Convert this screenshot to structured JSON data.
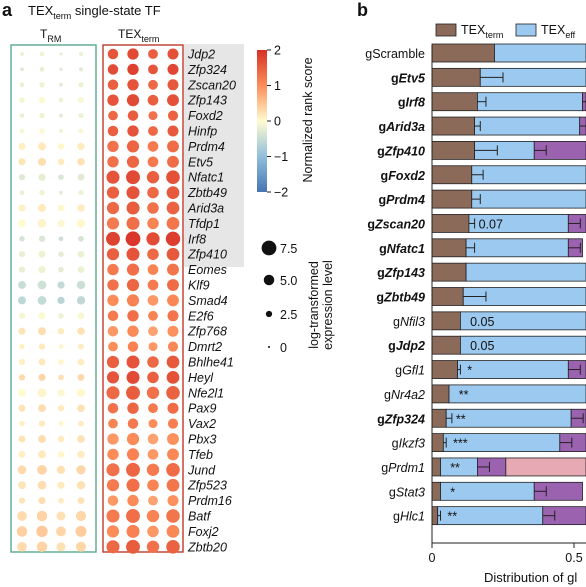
{
  "panel_a": {
    "letter": "a",
    "title_main": "TEX",
    "title_sub": "term",
    "title_rest": " single-state TF",
    "group_trm_main": "T",
    "group_trm_sub": "RM",
    "group_tex_main": "TEX",
    "group_tex_sub": "term",
    "colorbar_title": "Normalized rank score",
    "colorbar_ticks": [
      "2",
      "1",
      "0",
      "−1",
      "−2"
    ],
    "size_legend_title": "log-transformed expression level",
    "size_legend_labels": [
      "7.5",
      "5.0",
      "2.5",
      "0"
    ]
  },
  "panel_b": {
    "letter": "b",
    "legend_term_main": "TEX",
    "legend_term_sub": "term",
    "legend_eff": "TEX",
    "legend_eff_sub": "eff",
    "x_ticks": [
      "0",
      "0.5"
    ],
    "x_label": "Distribution of gl"
  },
  "colors": {
    "term": "#8b6a5a",
    "eff": "#9cc9ef",
    "purple": "#9b62b0",
    "pink": "#e7a9b3",
    "trm_box": "#5aa98a",
    "tex_box": "#c0392b",
    "highlight": "#e6e6e6"
  },
  "chart_data": [
    {
      "type": "heatmap",
      "title": "TEXterm single-state TF",
      "columns_groups": [
        "TRM",
        "TEXterm"
      ],
      "genes": [
        "Jdp2",
        "Zfp324",
        "Zscan20",
        "Zfp143",
        "Foxd2",
        "Hinfp",
        "Prdm4",
        "Etv5",
        "Nfatc1",
        "Zbtb49",
        "Arid3a",
        "Tfdp1",
        "Irf8",
        "Zfp410",
        "Eomes",
        "Klf9",
        "Smad4",
        "E2f6",
        "Zfp768",
        "Dmrt2",
        "Bhlhe41",
        "Heyl",
        "Nfe2l1",
        "Pax9",
        "Vax2",
        "Pbx3",
        "Tfeb",
        "Jund",
        "Zfp523",
        "Prdm16",
        "Batf",
        "Foxj2",
        "Zbtb20"
      ],
      "highlighted_genes": [
        "Jdp2",
        "Zfp324",
        "Zscan20",
        "Zfp143",
        "Foxd2",
        "Hinfp",
        "Prdm4",
        "Etv5",
        "Nfatc1",
        "Zbtb49",
        "Arid3a",
        "Tfdp1",
        "Irf8",
        "Zfp410"
      ],
      "trm_score": [
        -0.2,
        -0.3,
        -0.2,
        -0.1,
        -0.2,
        -0.1,
        0.1,
        0.2,
        -0.3,
        -0.2,
        0.1,
        0.0,
        -0.4,
        -0.2,
        -0.2,
        -0.5,
        -0.6,
        -0.1,
        0.2,
        0.1,
        0.1,
        0.3,
        0.0,
        0.2,
        0.1,
        0.2,
        0.1,
        0.3,
        0.2,
        0.2,
        0.3,
        0.4,
        0.3
      ],
      "trm_expr": [
        1.0,
        1.0,
        1.5,
        2.0,
        1.5,
        1.5,
        3.0,
        3.0,
        2.5,
        1.5,
        3.0,
        3.5,
        2.0,
        2.5,
        2.5,
        3.5,
        3.5,
        2.5,
        3.0,
        2.0,
        2.5,
        2.5,
        3.5,
        3.0,
        2.0,
        3.0,
        3.0,
        4.0,
        3.5,
        2.5,
        4.5,
        5.0,
        4.5
      ],
      "tex_score": [
        1.6,
        1.7,
        1.5,
        1.6,
        1.4,
        1.5,
        1.3,
        1.3,
        1.6,
        1.5,
        1.4,
        1.2,
        1.8,
        1.5,
        1.2,
        1.3,
        1.0,
        1.2,
        0.9,
        1.0,
        1.5,
        1.6,
        1.4,
        1.3,
        1.1,
        0.9,
        1.0,
        1.3,
        1.2,
        0.9,
        1.2,
        1.0,
        1.4
      ],
      "tex_expr": [
        5.0,
        5.0,
        5.0,
        5.5,
        4.5,
        5.0,
        5.5,
        5.5,
        6.5,
        6.0,
        6.0,
        6.0,
        7.0,
        6.0,
        5.5,
        5.5,
        5.5,
        5.0,
        5.0,
        4.5,
        6.0,
        6.0,
        6.5,
        5.0,
        4.5,
        5.5,
        5.5,
        6.5,
        6.0,
        5.0,
        6.5,
        6.0,
        6.5
      ],
      "colorbar_range": [
        -2,
        2
      ],
      "size_legend_values": [
        7.5,
        5.0,
        2.5,
        0
      ]
    },
    {
      "type": "bar",
      "orientation": "horizontal",
      "stacked": true,
      "categories": [
        "gScramble",
        "gEtv5",
        "gIrf8",
        "gArid3a",
        "gZfp410",
        "gFoxd2",
        "gPrdm4",
        "gZscan20",
        "gNfatc1",
        "gZfp143",
        "gZbtb49",
        "gNfil3",
        "gJdp2",
        "gGfl1",
        "gNr4a2",
        "gZfp324",
        "gIkzf3",
        "gPrdm1",
        "gStat3",
        "gHlc1"
      ],
      "label_prefix": [
        "g",
        "g",
        "g",
        "g",
        "g",
        "g",
        "g",
        "g",
        "g",
        "g",
        "g",
        "g",
        "g",
        "g",
        "g",
        "g",
        "g",
        "g",
        "g",
        "g"
      ],
      "label_name": [
        "Scramble",
        "Etv5",
        "Irf8",
        "Arid3a",
        "Zfp410",
        "Foxd2",
        "Prdm4",
        "Zscan20",
        "Nfatc1",
        "Zfp143",
        "Zbtb49",
        "Nfil3",
        "Jdp2",
        "Gfl1",
        "Nr4a2",
        "Zfp324",
        "Ikzf3",
        "Prdm1",
        "Stat3",
        "Hlc1"
      ],
      "bold": [
        false,
        true,
        true,
        true,
        true,
        true,
        true,
        true,
        true,
        true,
        true,
        false,
        true,
        false,
        false,
        true,
        false,
        false,
        false,
        false
      ],
      "italic": [
        false,
        true,
        true,
        true,
        true,
        true,
        true,
        true,
        true,
        true,
        true,
        true,
        true,
        true,
        true,
        true,
        true,
        true,
        true,
        true
      ],
      "series": [
        {
          "name": "TEXterm",
          "values": [
            0.22,
            0.17,
            0.16,
            0.15,
            0.15,
            0.14,
            0.14,
            0.13,
            0.12,
            0.12,
            0.11,
            0.1,
            0.1,
            0.09,
            0.06,
            0.05,
            0.04,
            0.03,
            0.03,
            0.02
          ]
        },
        {
          "name": "TEXeff",
          "values": [
            0.36,
            0.41,
            0.37,
            0.37,
            0.21,
            0.44,
            0.42,
            0.35,
            0.36,
            0.45,
            0.46,
            0.48,
            0.48,
            0.39,
            0.52,
            0.44,
            0.41,
            0.13,
            0.33,
            0.37
          ]
        },
        {
          "name": "",
          "values": [
            0,
            0,
            0.05,
            0.06,
            0.22,
            0,
            0.02,
            0.1,
            0.05,
            0.01,
            0,
            0,
            0,
            0.08,
            0,
            0.09,
            0.13,
            0.1,
            0.17,
            0.19
          ]
        },
        {
          "name": "",
          "values": [
            0,
            0,
            0,
            0,
            0,
            0,
            0,
            0,
            0,
            0,
            0,
            0,
            0,
            0,
            0,
            0,
            0,
            0.3,
            0,
            0
          ]
        }
      ],
      "term_error": [
        0.0,
        0.08,
        0.03,
        0.02,
        0.08,
        0.04,
        0.03,
        0.02,
        0.03,
        0.0,
        0.08,
        0.0,
        0.0,
        0.01,
        0.0,
        0.02,
        0.01,
        0.0,
        0.0,
        0.01
      ],
      "annotations": [
        "",
        "",
        "",
        "",
        "",
        "",
        "",
        "0.07",
        "",
        "",
        "",
        "0.05",
        "0.05",
        "*",
        "**",
        "**",
        "***",
        "**",
        "*",
        "**"
      ],
      "x_ticks": [
        0,
        0.5
      ],
      "xlabel": "Distribution of gl",
      "xlim": [
        0,
        0.58
      ]
    }
  ]
}
